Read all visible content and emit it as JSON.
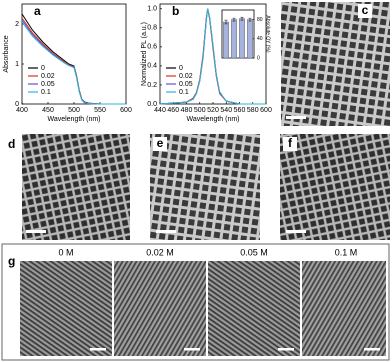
{
  "chart_data": [
    {
      "type": "line",
      "xlabel": "Wavelength (nm)",
      "ylabel": "Absorbance",
      "x": [
        400,
        420,
        440,
        460,
        480,
        490,
        500,
        505,
        510,
        515,
        520,
        530,
        550,
        600
      ],
      "series": [
        {
          "name": "0",
          "color": "#000000",
          "values": [
            2.25,
            1.85,
            1.55,
            1.3,
            1.1,
            1.0,
            0.95,
            0.7,
            0.35,
            0.12,
            0.05,
            0.02,
            0,
            0
          ]
        },
        {
          "name": "0.02",
          "color": "#e0301e",
          "values": [
            2.15,
            1.78,
            1.5,
            1.26,
            1.07,
            0.98,
            0.93,
            0.68,
            0.33,
            0.11,
            0.04,
            0.02,
            0,
            0
          ]
        },
        {
          "name": "0.05",
          "color": "#6a4fc9",
          "values": [
            2.1,
            1.74,
            1.47,
            1.24,
            1.05,
            0.97,
            0.92,
            0.67,
            0.32,
            0.1,
            0.04,
            0.01,
            0,
            0
          ]
        },
        {
          "name": "0.1",
          "color": "#2bb7d6",
          "values": [
            2.05,
            1.7,
            1.44,
            1.22,
            1.04,
            0.96,
            0.91,
            0.66,
            0.31,
            0.1,
            0.03,
            0.01,
            0,
            0
          ]
        }
      ],
      "xlim": [
        400,
        600
      ],
      "xticks": [
        400,
        450,
        500,
        550,
        600
      ],
      "ylim": [
        0,
        2.5
      ],
      "yticks": [
        0,
        1,
        2
      ],
      "legend": "lower left"
    },
    {
      "type": "line",
      "xlabel": "Wavelength (nm)",
      "ylabel": "Normalized PL (a.u.)",
      "x": [
        440,
        480,
        490,
        495,
        500,
        505,
        510,
        512,
        515,
        520,
        525,
        530,
        540,
        560,
        600
      ],
      "series": [
        {
          "name": "0",
          "color": "#000000",
          "values": [
            0,
            0.02,
            0.06,
            0.12,
            0.25,
            0.5,
            0.9,
            1.0,
            0.9,
            0.6,
            0.3,
            0.12,
            0.03,
            0,
            0
          ]
        },
        {
          "name": "0.02",
          "color": "#e0301e",
          "values": [
            0,
            0.02,
            0.06,
            0.12,
            0.26,
            0.52,
            0.91,
            1.0,
            0.89,
            0.58,
            0.29,
            0.11,
            0.03,
            0,
            0
          ]
        },
        {
          "name": "0.05",
          "color": "#6a4fc9",
          "values": [
            0,
            0.02,
            0.05,
            0.11,
            0.24,
            0.49,
            0.89,
            1.0,
            0.9,
            0.61,
            0.31,
            0.12,
            0.03,
            0,
            0
          ]
        },
        {
          "name": "0.1",
          "color": "#2bb7d6",
          "values": [
            0,
            0.02,
            0.05,
            0.11,
            0.24,
            0.48,
            0.88,
            1.0,
            0.91,
            0.62,
            0.31,
            0.13,
            0.03,
            0,
            0
          ]
        }
      ],
      "xlim": [
        440,
        600
      ],
      "xticks": [
        440,
        460,
        480,
        500,
        520,
        540,
        560,
        580,
        600
      ],
      "ylim": [
        0,
        1.05
      ],
      "yticks": [
        {
          "value": 0,
          "label": "0.0"
        },
        0.2,
        0.4,
        0.6,
        0.8,
        {
          "value": 1,
          "label": "1.0"
        }
      ],
      "legend": "lower left"
    },
    {
      "type": "bar",
      "ylabel": "Absolute QY (%)",
      "categories": [
        null,
        null,
        null,
        null
      ],
      "values": [
        75,
        80,
        82,
        80
      ],
      "errors": [
        4,
        3,
        3,
        3
      ],
      "color": "#a7b3dc",
      "ylim": [
        0,
        100
      ],
      "yticks": [
        0,
        40,
        80
      ]
    }
  ],
  "panels": {
    "labels": [
      "a",
      "b",
      "c",
      "d",
      "e",
      "f",
      "g"
    ],
    "captions": [
      "0 M",
      "0.02 M",
      "0.05 M",
      "0.1 M"
    ]
  }
}
